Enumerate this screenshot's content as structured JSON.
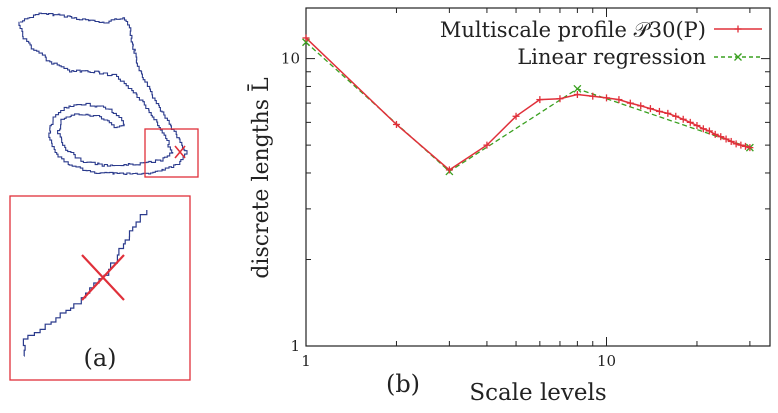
{
  "panel_a": {
    "label": "(a)",
    "colors": {
      "contour": "#2a3a8c",
      "highlight": "#e0303a",
      "cross": "#e0303a"
    }
  },
  "panel_b": {
    "label": "(b)"
  },
  "chart_data": {
    "type": "line",
    "xlabel": "Scale levels",
    "ylabel": "discrete lengths L̄",
    "x_scale": "log",
    "y_scale": "log",
    "xlim": [
      1,
      35
    ],
    "ylim": [
      1,
      15
    ],
    "x_ticks": [
      1,
      10
    ],
    "x_tick_labels": [
      "1",
      "10"
    ],
    "y_ticks": [
      1,
      10
    ],
    "y_tick_labels": [
      "1",
      "10"
    ],
    "grid": false,
    "legend_position": "top-right",
    "series": [
      {
        "name": "Multiscale profile 𝒫30(P)",
        "color": "#e0303a",
        "marker": "plus",
        "style": "solid",
        "x": [
          1,
          2,
          3,
          4,
          5,
          6,
          7,
          8,
          9,
          10,
          11,
          12,
          13,
          14,
          15,
          16,
          17,
          18,
          19,
          20,
          21,
          22,
          23,
          24,
          25,
          26,
          27,
          28,
          29,
          30
        ],
        "y": [
          11.8,
          5.9,
          4.1,
          5.0,
          6.3,
          7.2,
          7.25,
          7.5,
          7.4,
          7.3,
          7.2,
          7.0,
          6.85,
          6.7,
          6.55,
          6.45,
          6.3,
          6.15,
          6.0,
          5.85,
          5.7,
          5.6,
          5.45,
          5.35,
          5.25,
          5.15,
          5.05,
          5.0,
          4.95,
          4.9
        ]
      },
      {
        "name": "Linear regression",
        "color": "#3aa020",
        "marker": "x",
        "style": "dashed",
        "x": [
          1,
          3,
          8,
          30
        ],
        "y": [
          11.4,
          4.05,
          7.85,
          4.9
        ]
      }
    ]
  }
}
